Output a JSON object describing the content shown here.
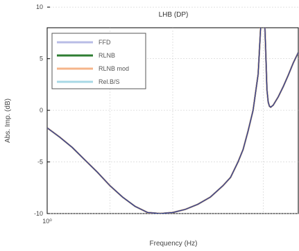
{
  "chart_data": {
    "type": "line",
    "title": "LHB (DP)",
    "xlabel": "Frequency (Hz)",
    "ylabel": "Abs. Imp. (dB)",
    "xscale": "log",
    "x_tick_labels": [
      "10⁰"
    ],
    "ylim": [
      -10,
      8
    ],
    "y_ticks": [
      -10,
      -5,
      0,
      5,
      10
    ],
    "y_tick_labels": [
      "-10",
      "-5",
      "0",
      "5",
      "10"
    ],
    "grid": true,
    "legend": "top-left",
    "x": [
      0.0,
      0.05,
      0.1,
      0.15,
      0.2,
      0.25,
      0.3,
      0.35,
      0.4,
      0.45,
      0.5,
      0.55,
      0.6,
      0.65,
      0.7,
      0.73,
      0.76,
      0.78,
      0.8,
      0.82,
      0.84,
      0.85,
      0.86,
      0.87,
      0.875,
      0.88,
      0.885,
      0.89,
      0.9,
      0.92,
      0.94,
      0.96,
      0.98,
      1.0
    ],
    "series": [
      {
        "name": "FFD",
        "color": "#b8bce6",
        "values": [
          -1.7,
          -2.6,
          -3.6,
          -4.8,
          -6.0,
          -7.3,
          -8.4,
          -9.3,
          -9.9,
          -10.0,
          -9.9,
          -9.6,
          -9.1,
          -8.4,
          -7.3,
          -6.5,
          -5.0,
          -3.8,
          -2.0,
          0.0,
          3.5,
          8.0,
          13.0,
          6.0,
          2.0,
          0.8,
          0.4,
          0.3,
          0.5,
          1.3,
          2.3,
          3.4,
          4.6,
          5.6
        ]
      },
      {
        "name": "RLNB",
        "color": "#2e7d32",
        "values": [
          -1.7,
          -2.6,
          -3.6,
          -4.8,
          -6.0,
          -7.3,
          -8.4,
          -9.3,
          -9.9,
          -10.0,
          -9.9,
          -9.6,
          -9.1,
          -8.4,
          -7.3,
          -6.5,
          -5.0,
          -3.8,
          -2.0,
          0.0,
          3.5,
          8.0,
          13.0,
          6.0,
          2.0,
          0.8,
          0.4,
          0.3,
          0.5,
          1.3,
          2.3,
          3.4,
          4.6,
          5.6
        ]
      },
      {
        "name": "RLNB mod",
        "color": "#f5b58a",
        "values": [
          -1.7,
          -2.6,
          -3.6,
          -4.8,
          -6.0,
          -7.3,
          -8.4,
          -9.3,
          -9.9,
          -10.0,
          -9.9,
          -9.6,
          -9.1,
          -8.4,
          -7.3,
          -6.5,
          -5.0,
          -3.8,
          -2.0,
          0.0,
          3.5,
          8.0,
          13.0,
          6.0,
          2.0,
          0.8,
          0.4,
          0.3,
          0.5,
          1.3,
          2.3,
          3.4,
          4.6,
          5.6
        ]
      },
      {
        "name": "Rel.B/S",
        "color": "#a8d8e6",
        "values": [
          -1.7,
          -2.6,
          -3.6,
          -4.8,
          -6.0,
          -7.3,
          -8.4,
          -9.3,
          -9.9,
          -10.0,
          -9.9,
          -9.6,
          -9.1,
          -8.4,
          -7.3,
          -6.5,
          -5.0,
          -3.8,
          -2.0,
          0.0,
          3.5,
          8.0,
          13.0,
          6.0,
          2.0,
          0.8,
          0.4,
          0.3,
          0.5,
          1.3,
          2.3,
          3.4,
          4.6,
          5.6
        ]
      }
    ]
  },
  "colors": {
    "axis": "#000000",
    "grid": "#cfcfcf",
    "final_line": "#2f3f8f"
  }
}
